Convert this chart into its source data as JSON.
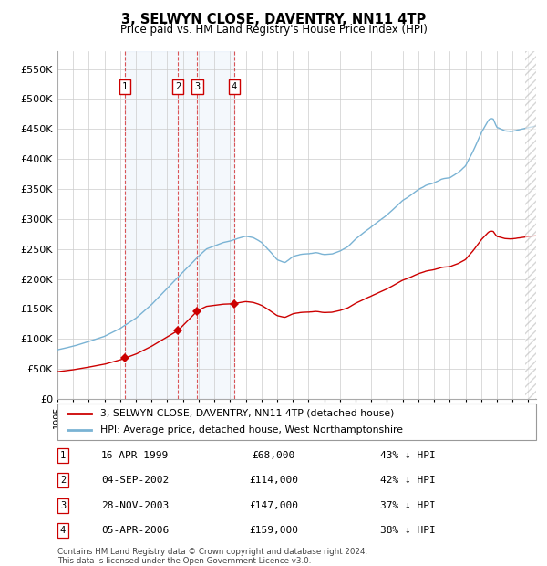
{
  "title": "3, SELWYN CLOSE, DAVENTRY, NN11 4TP",
  "subtitle": "Price paid vs. HM Land Registry's House Price Index (HPI)",
  "yticks": [
    0,
    50000,
    100000,
    150000,
    200000,
    250000,
    300000,
    350000,
    400000,
    450000,
    500000,
    550000
  ],
  "ytick_labels": [
    "£0",
    "£50K",
    "£100K",
    "£150K",
    "£200K",
    "£250K",
    "£300K",
    "£350K",
    "£400K",
    "£450K",
    "£500K",
    "£550K"
  ],
  "hpi_color": "#7ab3d4",
  "price_color": "#cc0000",
  "background_color": "#ffffff",
  "grid_color": "#cccccc",
  "legend_label_price": "3, SELWYN CLOSE, DAVENTRY, NN11 4TP (detached house)",
  "legend_label_hpi": "HPI: Average price, detached house, West Northamptonshire",
  "sales": [
    {
      "num": 1,
      "date_label": "16-APR-1999",
      "date_x": 1999.29,
      "price": 68000,
      "pct": "43% ↓ HPI"
    },
    {
      "num": 2,
      "date_label": "04-SEP-2002",
      "date_x": 2002.67,
      "price": 114000,
      "pct": "42% ↓ HPI"
    },
    {
      "num": 3,
      "date_label": "28-NOV-2003",
      "date_x": 2003.91,
      "price": 147000,
      "pct": "37% ↓ HPI"
    },
    {
      "num": 4,
      "date_label": "05-APR-2006",
      "date_x": 2006.27,
      "price": 159000,
      "pct": "38% ↓ HPI"
    }
  ],
  "footer": "Contains HM Land Registry data © Crown copyright and database right 2024.\nThis data is licensed under the Open Government Licence v3.0.",
  "xmin": 1995.0,
  "xmax": 2025.5,
  "ymin": 0,
  "ymax": 580000
}
